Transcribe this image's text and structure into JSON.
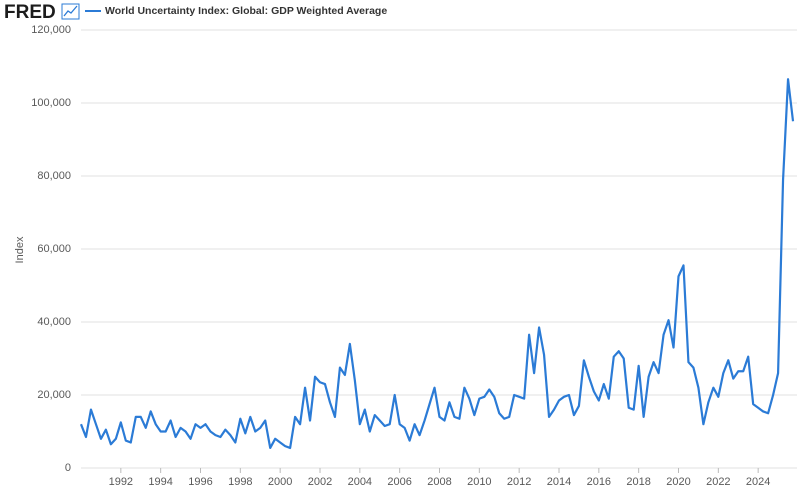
{
  "chart_data": {
    "type": "line",
    "logo": "FRED",
    "series": [
      {
        "name": "World Uncertainty Index: Global: GDP Weighted Average",
        "color": "#2b7bd6",
        "values": [
          12000,
          8500,
          16000,
          12000,
          8000,
          10500,
          6500,
          8000,
          12500,
          7500,
          7000,
          14000,
          14000,
          11000,
          15500,
          12000,
          10000,
          10000,
          13000,
          8500,
          11000,
          10000,
          8000,
          12000,
          11000,
          12000,
          10000,
          9000,
          8500,
          10500,
          9000,
          7000,
          13500,
          9500,
          14000,
          10000,
          11000,
          13000,
          5500,
          8000,
          7000,
          6000,
          5500,
          14000,
          12000,
          22000,
          13000,
          25000,
          23500,
          23000,
          18000,
          14000,
          27500,
          25500,
          34000,
          24000,
          12000,
          16000,
          10000,
          14500,
          13000,
          11500,
          12000,
          20000,
          12000,
          11000,
          7500,
          12000,
          9000,
          13000,
          17500,
          22000,
          14000,
          13000,
          18000,
          14000,
          13500,
          22000,
          19000,
          14500,
          19000,
          19500,
          21500,
          19500,
          15000,
          13500,
          14000,
          20000,
          19500,
          19000,
          36500,
          26000,
          38500,
          31000,
          14000,
          16000,
          18500,
          19500,
          20000,
          14500,
          17000,
          29500,
          25000,
          21000,
          18500,
          23000,
          19000,
          30500,
          32000,
          30000,
          16500,
          16000,
          28000,
          14000,
          25000,
          29000,
          26000,
          36500,
          40500,
          33000,
          52500,
          55500,
          29000,
          27500,
          22000,
          12000,
          18000,
          22000,
          19500,
          26000,
          29500,
          24500,
          26500,
          26500,
          30500,
          17500,
          16500,
          15500,
          15000,
          20000,
          26000,
          79000,
          106500,
          95000
        ]
      }
    ],
    "x": [
      1990,
      1990.25,
      1990.5,
      1990.75,
      1991,
      1991.25,
      1991.5,
      1991.75,
      1992,
      1992.25,
      1992.5,
      1992.75,
      1993,
      1993.25,
      1993.5,
      1993.75,
      1994,
      1994.25,
      1994.5,
      1994.75,
      1995,
      1995.25,
      1995.5,
      1995.75,
      1996,
      1996.25,
      1996.5,
      1996.75,
      1997,
      1997.25,
      1997.5,
      1997.75,
      1998,
      1998.25,
      1998.5,
      1998.75,
      1999,
      1999.25,
      1999.5,
      1999.75,
      2000,
      2000.25,
      2000.5,
      2000.75,
      2001,
      2001.25,
      2001.5,
      2001.75,
      2002,
      2002.25,
      2002.5,
      2002.75,
      2003,
      2003.25,
      2003.5,
      2003.75,
      2004,
      2004.25,
      2004.5,
      2004.75,
      2005,
      2005.25,
      2005.5,
      2005.75,
      2006,
      2006.25,
      2006.5,
      2006.75,
      2007,
      2007.25,
      2007.5,
      2007.75,
      2008,
      2008.25,
      2008.5,
      2008.75,
      2009,
      2009.25,
      2009.5,
      2009.75,
      2010,
      2010.25,
      2010.5,
      2010.75,
      2011,
      2011.25,
      2011.5,
      2011.75,
      2012,
      2012.25,
      2012.5,
      2012.75,
      2013,
      2013.25,
      2013.5,
      2013.75,
      2014,
      2014.25,
      2014.5,
      2014.75,
      2015,
      2015.25,
      2015.5,
      2015.75,
      2016,
      2016.25,
      2016.5,
      2016.75,
      2017,
      2017.25,
      2017.5,
      2017.75,
      2018,
      2018.25,
      2018.5,
      2018.75,
      2019,
      2019.25,
      2019.5,
      2019.75,
      2020,
      2020.25,
      2020.5,
      2020.75,
      2021,
      2021.25,
      2021.5,
      2021.75,
      2022,
      2022.25,
      2022.5,
      2022.75,
      2023,
      2023.25,
      2023.5,
      2023.75,
      2024,
      2024.25,
      2024.5,
      2024.75,
      2025,
      2025.25,
      2025.5,
      2025.75
    ],
    "y_label": "Index",
    "xlim": [
      1990,
      2025.95
    ],
    "xticks": [
      1992,
      1994,
      1996,
      1998,
      2000,
      2002,
      2004,
      2006,
      2008,
      2010,
      2012,
      2014,
      2016,
      2018,
      2020,
      2022,
      2024
    ],
    "ylim": [
      0,
      120000
    ],
    "yticks": [
      0,
      {
        "value": 20000,
        "label": "20,000"
      },
      {
        "value": 40000,
        "label": "40,000"
      },
      {
        "value": 60000,
        "label": "60,000"
      },
      {
        "value": 80000,
        "label": "80,000"
      },
      {
        "value": 100000,
        "label": "100,000"
      },
      {
        "value": 120000,
        "label": "120,000"
      }
    ],
    "grid": true
  }
}
